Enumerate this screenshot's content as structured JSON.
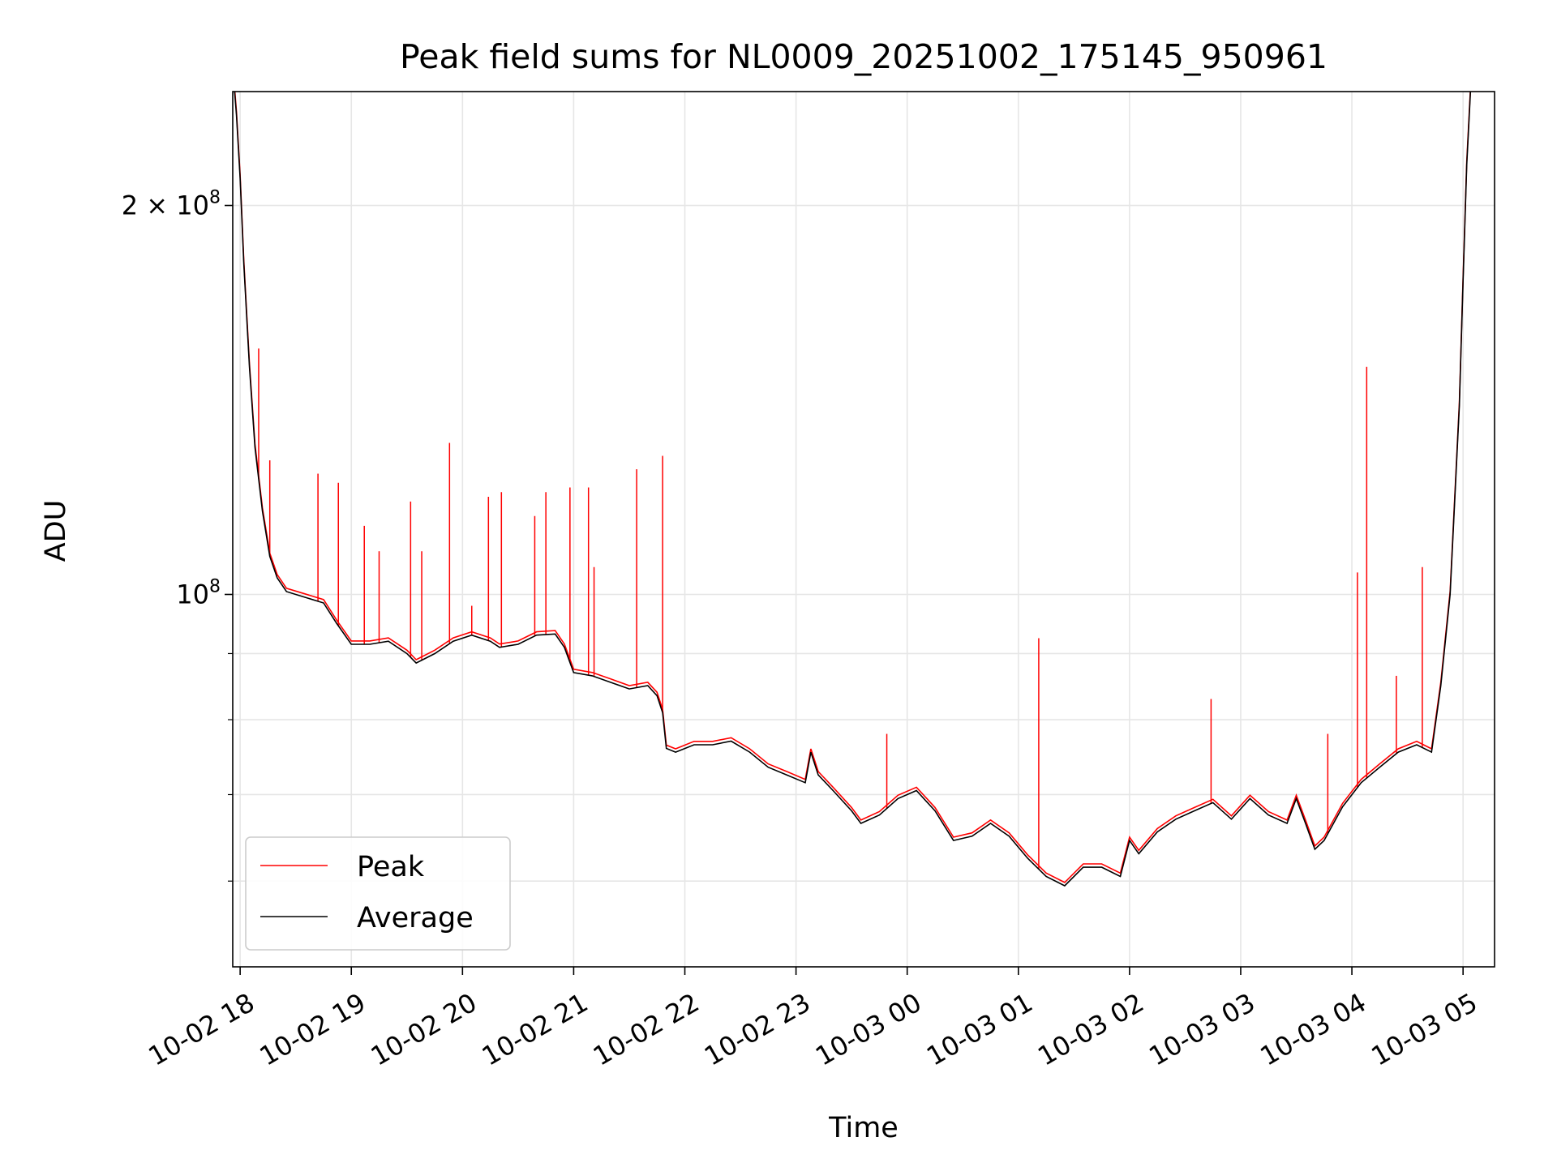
{
  "chart_data": {
    "type": "line",
    "title": "Peak field sums for NL0009_20251002_175145_950961",
    "xlabel": "Time",
    "ylabel": "ADU",
    "yscale": "log",
    "ylim": [
      51500000,
      245000000
    ],
    "xlim": [
      "2025-10-02 17:56",
      "2025-10-03 05:17"
    ],
    "grid": true,
    "legend_position": "lower-left",
    "x_ticks": [
      {
        "t": "2025-10-02 18:00",
        "label": "10-02 18"
      },
      {
        "t": "2025-10-02 19:00",
        "label": "10-02 19"
      },
      {
        "t": "2025-10-02 20:00",
        "label": "10-02 20"
      },
      {
        "t": "2025-10-02 21:00",
        "label": "10-02 21"
      },
      {
        "t": "2025-10-02 22:00",
        "label": "10-02 22"
      },
      {
        "t": "2025-10-02 23:00",
        "label": "10-02 23"
      },
      {
        "t": "2025-10-03 00:00",
        "label": "10-03 00"
      },
      {
        "t": "2025-10-03 01:00",
        "label": "10-03 01"
      },
      {
        "t": "2025-10-03 02:00",
        "label": "10-03 02"
      },
      {
        "t": "2025-10-03 03:00",
        "label": "10-03 03"
      },
      {
        "t": "2025-10-03 04:00",
        "label": "10-03 04"
      },
      {
        "t": "2025-10-03 05:00",
        "label": "10-03 05"
      }
    ],
    "y_major_ticks": [
      {
        "value": 100000000,
        "base": "10",
        "exp": "8",
        "coef": ""
      },
      {
        "value": 200000000,
        "base": "10",
        "exp": "8",
        "coef": "2 × "
      }
    ],
    "y_minor_ticks": [
      60000000,
      70000000,
      80000000,
      90000000
    ],
    "series": [
      {
        "name": "Average",
        "color": "#000000",
        "points": [
          [
            "2025-10-02 17:57",
            245000000
          ],
          [
            "2025-10-02 17:58",
            235000000
          ],
          [
            "2025-10-02 18:00",
            210000000
          ],
          [
            "2025-10-02 18:02",
            180000000
          ],
          [
            "2025-10-02 18:05",
            150000000
          ],
          [
            "2025-10-02 18:08",
            130000000
          ],
          [
            "2025-10-02 18:12",
            116000000
          ],
          [
            "2025-10-02 18:16",
            107000000
          ],
          [
            "2025-10-02 18:20",
            103000000
          ],
          [
            "2025-10-02 18:25",
            100500000
          ],
          [
            "2025-10-02 18:35",
            99500000
          ],
          [
            "2025-10-02 18:45",
            98500000
          ],
          [
            "2025-10-02 18:52",
            95000000
          ],
          [
            "2025-10-02 19:00",
            91500000
          ],
          [
            "2025-10-02 19:10",
            91500000
          ],
          [
            "2025-10-02 19:20",
            92000000
          ],
          [
            "2025-10-02 19:30",
            90000000
          ],
          [
            "2025-10-02 19:35",
            88500000
          ],
          [
            "2025-10-02 19:45",
            90000000
          ],
          [
            "2025-10-02 19:55",
            92000000
          ],
          [
            "2025-10-02 20:05",
            93000000
          ],
          [
            "2025-10-02 20:15",
            92000000
          ],
          [
            "2025-10-02 20:20",
            91000000
          ],
          [
            "2025-10-02 20:30",
            91500000
          ],
          [
            "2025-10-02 20:40",
            93000000
          ],
          [
            "2025-10-02 20:50",
            93200000
          ],
          [
            "2025-10-02 20:55",
            91000000
          ],
          [
            "2025-10-02 21:00",
            87000000
          ],
          [
            "2025-10-02 21:10",
            86500000
          ],
          [
            "2025-10-02 21:20",
            85500000
          ],
          [
            "2025-10-02 21:30",
            84500000
          ],
          [
            "2025-10-02 21:40",
            85000000
          ],
          [
            "2025-10-02 21:45",
            83500000
          ],
          [
            "2025-10-02 21:48",
            81000000
          ],
          [
            "2025-10-02 21:50",
            76000000
          ],
          [
            "2025-10-02 21:55",
            75500000
          ],
          [
            "2025-10-02 22:05",
            76500000
          ],
          [
            "2025-10-02 22:15",
            76500000
          ],
          [
            "2025-10-02 22:25",
            77000000
          ],
          [
            "2025-10-02 22:35",
            75500000
          ],
          [
            "2025-10-02 22:45",
            73500000
          ],
          [
            "2025-10-02 22:55",
            72500000
          ],
          [
            "2025-10-02 23:05",
            71500000
          ],
          [
            "2025-10-02 23:08",
            75500000
          ],
          [
            "2025-10-02 23:12",
            72500000
          ],
          [
            "2025-10-02 23:20",
            70500000
          ],
          [
            "2025-10-02 23:30",
            68000000
          ],
          [
            "2025-10-02 23:35",
            66500000
          ],
          [
            "2025-10-02 23:45",
            67500000
          ],
          [
            "2025-10-02 23:55",
            69500000
          ],
          [
            "2025-10-03 00:05",
            70500000
          ],
          [
            "2025-10-03 00:15",
            68000000
          ],
          [
            "2025-10-03 00:25",
            64500000
          ],
          [
            "2025-10-03 00:35",
            65000000
          ],
          [
            "2025-10-03 00:45",
            66500000
          ],
          [
            "2025-10-03 00:55",
            65000000
          ],
          [
            "2025-10-03 01:05",
            62500000
          ],
          [
            "2025-10-03 01:15",
            60500000
          ],
          [
            "2025-10-03 01:25",
            59500000
          ],
          [
            "2025-10-03 01:35",
            61500000
          ],
          [
            "2025-10-03 01:45",
            61500000
          ],
          [
            "2025-10-03 01:55",
            60500000
          ],
          [
            "2025-10-03 02:00",
            64500000
          ],
          [
            "2025-10-03 02:05",
            63000000
          ],
          [
            "2025-10-03 02:15",
            65500000
          ],
          [
            "2025-10-03 02:25",
            67000000
          ],
          [
            "2025-10-03 02:35",
            68000000
          ],
          [
            "2025-10-03 02:45",
            69000000
          ],
          [
            "2025-10-03 02:55",
            67000000
          ],
          [
            "2025-10-03 03:05",
            69500000
          ],
          [
            "2025-10-03 03:15",
            67500000
          ],
          [
            "2025-10-03 03:25",
            66500000
          ],
          [
            "2025-10-03 03:30",
            69500000
          ],
          [
            "2025-10-03 03:35",
            66500000
          ],
          [
            "2025-10-03 03:40",
            63500000
          ],
          [
            "2025-10-03 03:45",
            64500000
          ],
          [
            "2025-10-03 03:55",
            68500000
          ],
          [
            "2025-10-03 04:05",
            71500000
          ],
          [
            "2025-10-03 04:15",
            73500000
          ],
          [
            "2025-10-03 04:25",
            75500000
          ],
          [
            "2025-10-03 04:35",
            76500000
          ],
          [
            "2025-10-03 04:43",
            75500000
          ],
          [
            "2025-10-03 04:48",
            85000000
          ],
          [
            "2025-10-03 04:53",
            100000000
          ],
          [
            "2025-10-03 04:58",
            140000000
          ],
          [
            "2025-10-03 05:00",
            175000000
          ],
          [
            "2025-10-03 05:02",
            215000000
          ],
          [
            "2025-10-03 05:04",
            245000000
          ]
        ]
      },
      {
        "name": "Peak",
        "color": "#ff0000",
        "offset_fraction": 0.006,
        "spikes": [
          [
            "2025-10-02 18:10",
            155000000
          ],
          [
            "2025-10-02 18:16",
            127000000
          ],
          [
            "2025-10-02 18:42",
            124000000
          ],
          [
            "2025-10-02 18:53",
            122000000
          ],
          [
            "2025-10-02 19:07",
            113000000
          ],
          [
            "2025-10-02 19:15",
            108000000
          ],
          [
            "2025-10-02 19:32",
            118000000
          ],
          [
            "2025-10-02 19:38",
            108000000
          ],
          [
            "2025-10-02 19:53",
            131000000
          ],
          [
            "2025-10-02 20:05",
            98000000
          ],
          [
            "2025-10-02 20:14",
            119000000
          ],
          [
            "2025-10-02 20:21",
            120000000
          ],
          [
            "2025-10-02 20:39",
            115000000
          ],
          [
            "2025-10-02 20:45",
            120000000
          ],
          [
            "2025-10-02 20:58",
            121000000
          ],
          [
            "2025-10-02 21:08",
            121000000
          ],
          [
            "2025-10-02 21:11",
            105000000
          ],
          [
            "2025-10-02 21:34",
            125000000
          ],
          [
            "2025-10-02 21:48",
            128000000
          ],
          [
            "2025-10-02 23:49",
            78000000
          ],
          [
            "2025-10-03 01:11",
            92500000
          ],
          [
            "2025-10-03 02:44",
            83000000
          ],
          [
            "2025-10-03 03:47",
            78000000
          ],
          [
            "2025-10-03 04:03",
            104000000
          ],
          [
            "2025-10-03 04:08",
            150000000
          ],
          [
            "2025-10-03 04:24",
            86500000
          ],
          [
            "2025-10-03 04:38",
            105000000
          ]
        ]
      }
    ]
  }
}
